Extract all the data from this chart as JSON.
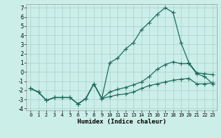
{
  "xlabel": "Humidex (Indice chaleur)",
  "bg_color": "#cceee8",
  "grid_color": "#aad4ce",
  "line_color": "#1a6b5a",
  "xlim": [
    -0.5,
    23.5
  ],
  "ylim": [
    -4.2,
    7.4
  ],
  "xticks": [
    0,
    1,
    2,
    3,
    4,
    5,
    6,
    7,
    8,
    9,
    10,
    11,
    12,
    13,
    14,
    15,
    16,
    17,
    18,
    19,
    20,
    21,
    22,
    23
  ],
  "yticks": [
    -4,
    -3,
    -2,
    -1,
    0,
    1,
    2,
    3,
    4,
    5,
    6,
    7
  ],
  "curve_high_x": [
    0,
    1,
    2,
    3,
    4,
    5,
    6,
    7,
    8,
    9,
    10,
    11,
    12,
    13,
    14,
    15,
    16,
    17,
    18,
    19,
    20,
    21,
    22,
    23
  ],
  "curve_high_y": [
    -1.8,
    -2.2,
    -3.1,
    -2.8,
    -2.8,
    -2.8,
    -3.5,
    -2.9,
    -1.3,
    -2.9,
    1.0,
    1.5,
    2.5,
    3.2,
    4.6,
    5.4,
    6.3,
    7.0,
    6.5,
    3.2,
    1.0,
    -0.1,
    -0.2,
    -0.3
  ],
  "curve_mid_x": [
    0,
    1,
    2,
    3,
    4,
    5,
    6,
    7,
    8,
    9,
    10,
    11,
    12,
    13,
    14,
    15,
    16,
    17,
    18,
    19,
    20,
    21,
    22,
    23
  ],
  "curve_mid_y": [
    -1.8,
    -2.2,
    -3.1,
    -2.8,
    -2.8,
    -2.8,
    -3.5,
    -2.9,
    -1.3,
    -2.9,
    -2.2,
    -1.9,
    -1.7,
    -1.4,
    -1.1,
    -0.5,
    0.3,
    0.8,
    1.1,
    0.9,
    0.9,
    -0.2,
    -0.5,
    -1.3
  ],
  "curve_low_x": [
    0,
    1,
    2,
    3,
    4,
    5,
    6,
    7,
    8,
    9,
    10,
    11,
    12,
    13,
    14,
    15,
    16,
    17,
    18,
    19,
    20,
    21,
    22,
    23
  ],
  "curve_low_y": [
    -1.8,
    -2.2,
    -3.1,
    -2.8,
    -2.8,
    -2.8,
    -3.5,
    -2.9,
    -1.3,
    -2.9,
    -2.7,
    -2.5,
    -2.4,
    -2.2,
    -1.8,
    -1.5,
    -1.3,
    -1.1,
    -0.9,
    -0.8,
    -0.7,
    -1.3,
    -1.3,
    -1.2
  ]
}
